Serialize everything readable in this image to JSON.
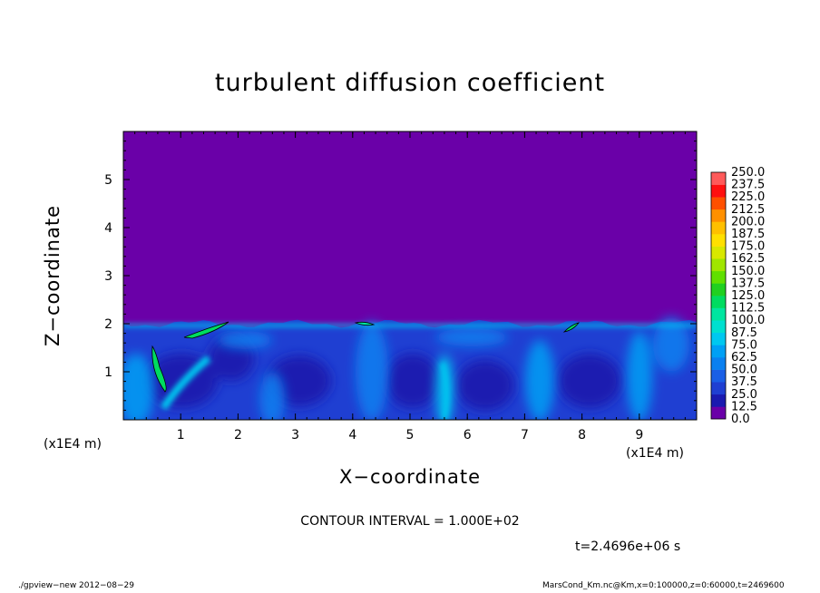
{
  "chart_data": {
    "type": "heatmap",
    "title": "turbulent diffusion coefficient",
    "xlabel": "X−coordinate",
    "ylabel": "Z−coordinate",
    "x_unit": "(x1E4 m)",
    "y_unit": "(x1E4 m)",
    "xlim": [
      0,
      10
    ],
    "ylim": [
      0,
      6
    ],
    "x_ticks": [
      "1",
      "2",
      "3",
      "4",
      "5",
      "6",
      "7",
      "8",
      "9"
    ],
    "y_ticks": [
      "1",
      "2",
      "3",
      "4",
      "5"
    ],
    "colorbar": {
      "levels": [
        "0.0",
        "12.5",
        "25.0",
        "37.5",
        "50.0",
        "62.5",
        "75.0",
        "87.5",
        "100.0",
        "112.5",
        "125.0",
        "137.5",
        "150.0",
        "162.5",
        "175.0",
        "187.5",
        "200.0",
        "212.5",
        "225.0",
        "237.5",
        "250.0"
      ],
      "colors": [
        "#6a00a8",
        "#1a1ab0",
        "#1f3fd2",
        "#1a5fe6",
        "#0a80f0",
        "#00a0f5",
        "#00c8f0",
        "#00e0d0",
        "#00e6a0",
        "#00dc60",
        "#20d020",
        "#60e000",
        "#a0e600",
        "#d8e800",
        "#ffe000",
        "#ffc000",
        "#ff9000",
        "#ff5000",
        "#ff1010",
        "#ff5a5a"
      ]
    },
    "boundary_layer_top": 2.0,
    "field_description_levels": {
      "above_boundary_layer": 0.0
    }
  },
  "contour_interval": "CONTOUR INTERVAL = 1.000E+02",
  "time_label": "t=2.4696e+06 s",
  "footer_left": "./gpview−new   2012−08−29",
  "footer_right": "MarsCond_Km.nc@Km,x=0:100000,z=0:60000,t=2469600"
}
